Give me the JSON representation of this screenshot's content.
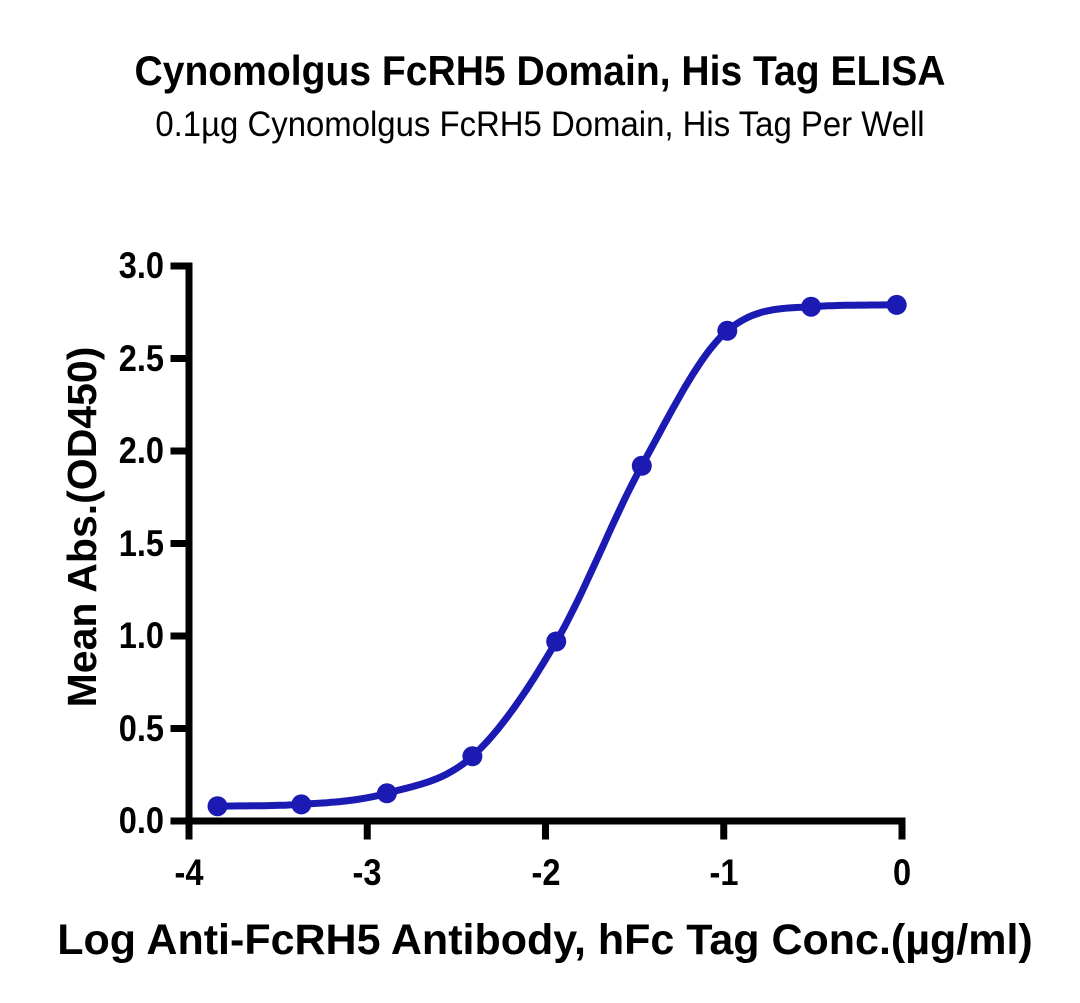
{
  "chart": {
    "title": "Cynomolgus FcRH5 Domain, His Tag ELISA",
    "subtitle": "0.1µg Cynomolgus FcRH5 Domain, His Tag Per Well",
    "xlabel": "Log Anti-FcRH5 Antibody, hFc Tag Conc.(µg/ml)",
    "ylabel": "Mean Abs.(OD450)"
  },
  "chart_data": {
    "type": "line",
    "title": "Cynomolgus FcRH5 Domain, His Tag ELISA",
    "subtitle": "0.1µg Cynomolgus FcRH5 Domain, His Tag Per Well",
    "xlabel": "Log Anti-FcRH5 Antibody, hFc Tag Conc.(µg/ml)",
    "ylabel": "Mean Abs.(OD450)",
    "xlim": [
      -4,
      0
    ],
    "ylim": [
      0,
      3
    ],
    "x_ticks": [
      {
        "value": -4,
        "label": "-4"
      },
      {
        "value": -3,
        "label": "-3"
      },
      {
        "value": -2,
        "label": "-2"
      },
      {
        "value": -1,
        "label": "-1"
      },
      {
        "value": 0,
        "label": "0"
      }
    ],
    "y_ticks": [
      {
        "value": 0,
        "label": "0.0"
      },
      {
        "value": 0.5,
        "label": "0.5"
      },
      {
        "value": 1,
        "label": "1.0"
      },
      {
        "value": 1.5,
        "label": "1.5"
      },
      {
        "value": 2,
        "label": "2.0"
      },
      {
        "value": 2.5,
        "label": "2.5"
      },
      {
        "value": 3,
        "label": "3.0"
      }
    ],
    "grid": false,
    "legend": "none",
    "axis_color": "#000000",
    "series": [
      {
        "name": "Anti-FcRH5 Antibody, hFc Tag",
        "color": "#1b1bb3",
        "marker": "circle",
        "points": [
          [
            -3.84,
            0.08
          ],
          [
            -3.37,
            0.09
          ],
          [
            -2.89,
            0.15
          ],
          [
            -2.41,
            0.35
          ],
          [
            -1.94,
            0.97
          ],
          [
            -1.46,
            1.92
          ],
          [
            -0.98,
            2.65
          ],
          [
            -0.51,
            2.78
          ],
          [
            -0.03,
            2.79
          ]
        ]
      }
    ]
  }
}
